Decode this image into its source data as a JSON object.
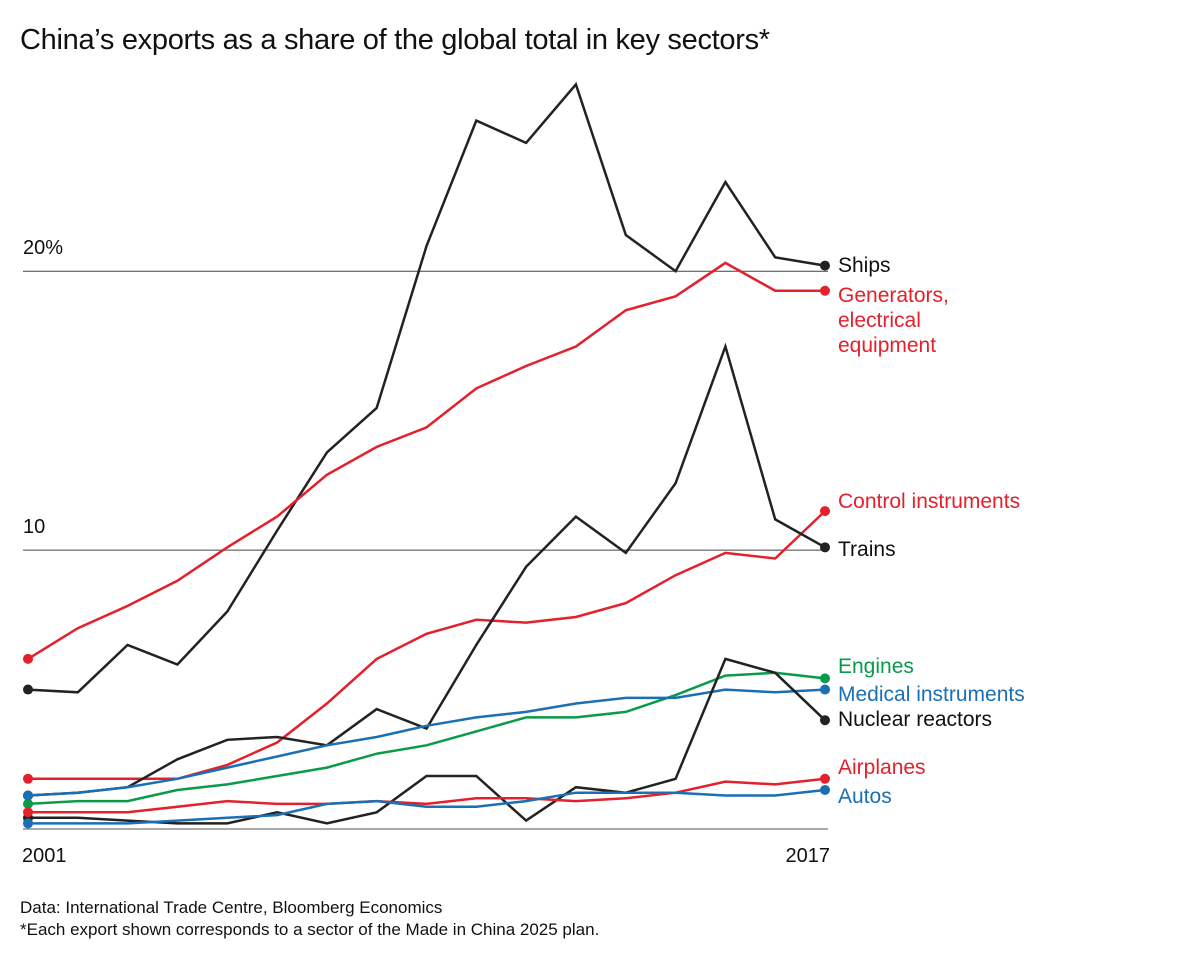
{
  "chart_data": {
    "type": "line",
    "title": "China’s exports as a share of the global total in key sectors*",
    "source": "Data: International Trade Centre, Bloomberg Economics",
    "footnote": "*Each export shown corresponds to a sector of the Made in China 2025 plan.",
    "x": [
      2001,
      2002,
      2003,
      2004,
      2005,
      2006,
      2007,
      2008,
      2009,
      2010,
      2011,
      2012,
      2013,
      2014,
      2015,
      2016,
      2017
    ],
    "xlim": [
      2001,
      2017
    ],
    "xticks": [
      2001,
      2017
    ],
    "ylim": [
      0,
      27
    ],
    "yticks": [
      10,
      {
        "value": 20,
        "label": "20%"
      }
    ],
    "grid": true,
    "series": [
      {
        "name": "Ships",
        "color": "#222222",
        "values": [
          5.0,
          4.9,
          6.6,
          5.9,
          7.8,
          10.7,
          13.5,
          15.1,
          20.9,
          25.4,
          24.6,
          26.7,
          21.3,
          20.0,
          23.2,
          20.5,
          20.2
        ]
      },
      {
        "name": "Generators, electrical equipment",
        "color": "#e3202b",
        "values": [
          6.1,
          7.2,
          8.0,
          8.9,
          10.1,
          11.2,
          12.7,
          13.7,
          14.4,
          15.8,
          16.6,
          17.3,
          18.6,
          19.1,
          20.3,
          19.3,
          19.3
        ]
      },
      {
        "name": "Control instruments",
        "color": "#e3202b",
        "values": [
          1.8,
          1.8,
          1.8,
          1.8,
          2.3,
          3.1,
          4.5,
          6.1,
          7.0,
          7.5,
          7.4,
          7.6,
          8.1,
          9.1,
          9.9,
          9.7,
          11.4
        ]
      },
      {
        "name": "Trains",
        "color": "#222222",
        "values": [
          1.2,
          1.3,
          1.5,
          2.5,
          3.2,
          3.3,
          3.0,
          4.3,
          3.6,
          6.6,
          9.4,
          11.2,
          9.9,
          12.4,
          17.3,
          11.1,
          10.1
        ]
      },
      {
        "name": "Engines",
        "color": "#0a9a4a",
        "values": [
          0.9,
          1.0,
          1.0,
          1.4,
          1.6,
          1.9,
          2.2,
          2.7,
          3.0,
          3.5,
          4.0,
          4.0,
          4.2,
          4.8,
          5.5,
          5.6,
          5.4
        ]
      },
      {
        "name": "Medical instruments",
        "color": "#1a6fb5",
        "values": [
          1.2,
          1.3,
          1.5,
          1.8,
          2.2,
          2.6,
          3.0,
          3.3,
          3.7,
          4.0,
          4.2,
          4.5,
          4.7,
          4.7,
          5.0,
          4.9,
          5.0
        ]
      },
      {
        "name": "Nuclear reactors",
        "color": "#222222",
        "values": [
          0.4,
          0.4,
          0.3,
          0.2,
          0.2,
          0.6,
          0.2,
          0.6,
          1.9,
          1.9,
          0.3,
          1.5,
          1.3,
          1.8,
          6.1,
          5.6,
          3.9
        ]
      },
      {
        "name": "Airplanes",
        "color": "#e3202b",
        "values": [
          0.6,
          0.6,
          0.6,
          0.8,
          1.0,
          0.9,
          0.9,
          1.0,
          0.9,
          1.1,
          1.1,
          1.0,
          1.1,
          1.3,
          1.7,
          1.6,
          1.8
        ]
      },
      {
        "name": "Autos",
        "color": "#1a6fb5",
        "values": [
          0.2,
          0.2,
          0.2,
          0.3,
          0.4,
          0.5,
          0.9,
          1.0,
          0.8,
          0.8,
          1.0,
          1.3,
          1.3,
          1.3,
          1.2,
          1.2,
          1.4
        ]
      }
    ]
  }
}
